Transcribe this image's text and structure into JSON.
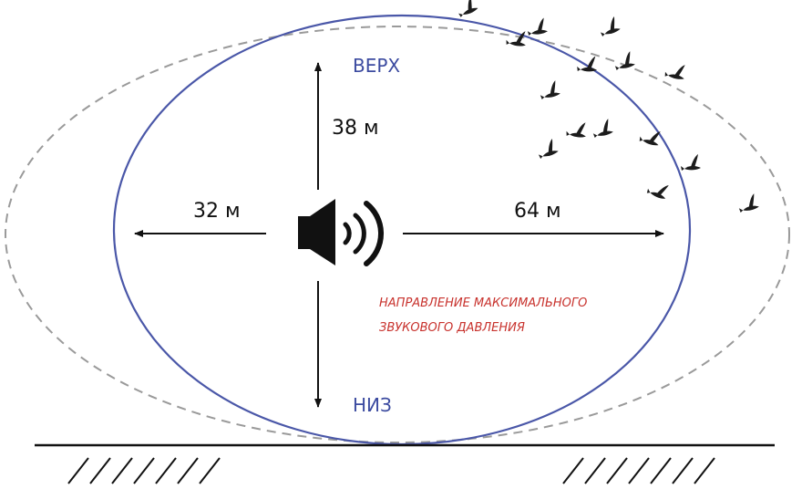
{
  "labels": {
    "up": "ВЕРХ",
    "down": "НИЗ",
    "dist_up": "38 м",
    "dist_left": "32 м",
    "dist_right": "64 м",
    "note_line1": "НАПРАВЛЕНИЕ МАКСИМАЛЬНОГО",
    "note_line2": "ЗВУКОВОГО ДАВЛЕНИЯ"
  },
  "colors": {
    "solid_ellipse": "#4a57a8",
    "dashed_ellipse": "#9a9a9a",
    "direction_text": "#3c4ba0",
    "note_text": "#c8322d",
    "ink": "#111111"
  },
  "icons": {
    "speaker": "speaker-volume-icon",
    "birds": "bird-flock-icon"
  }
}
